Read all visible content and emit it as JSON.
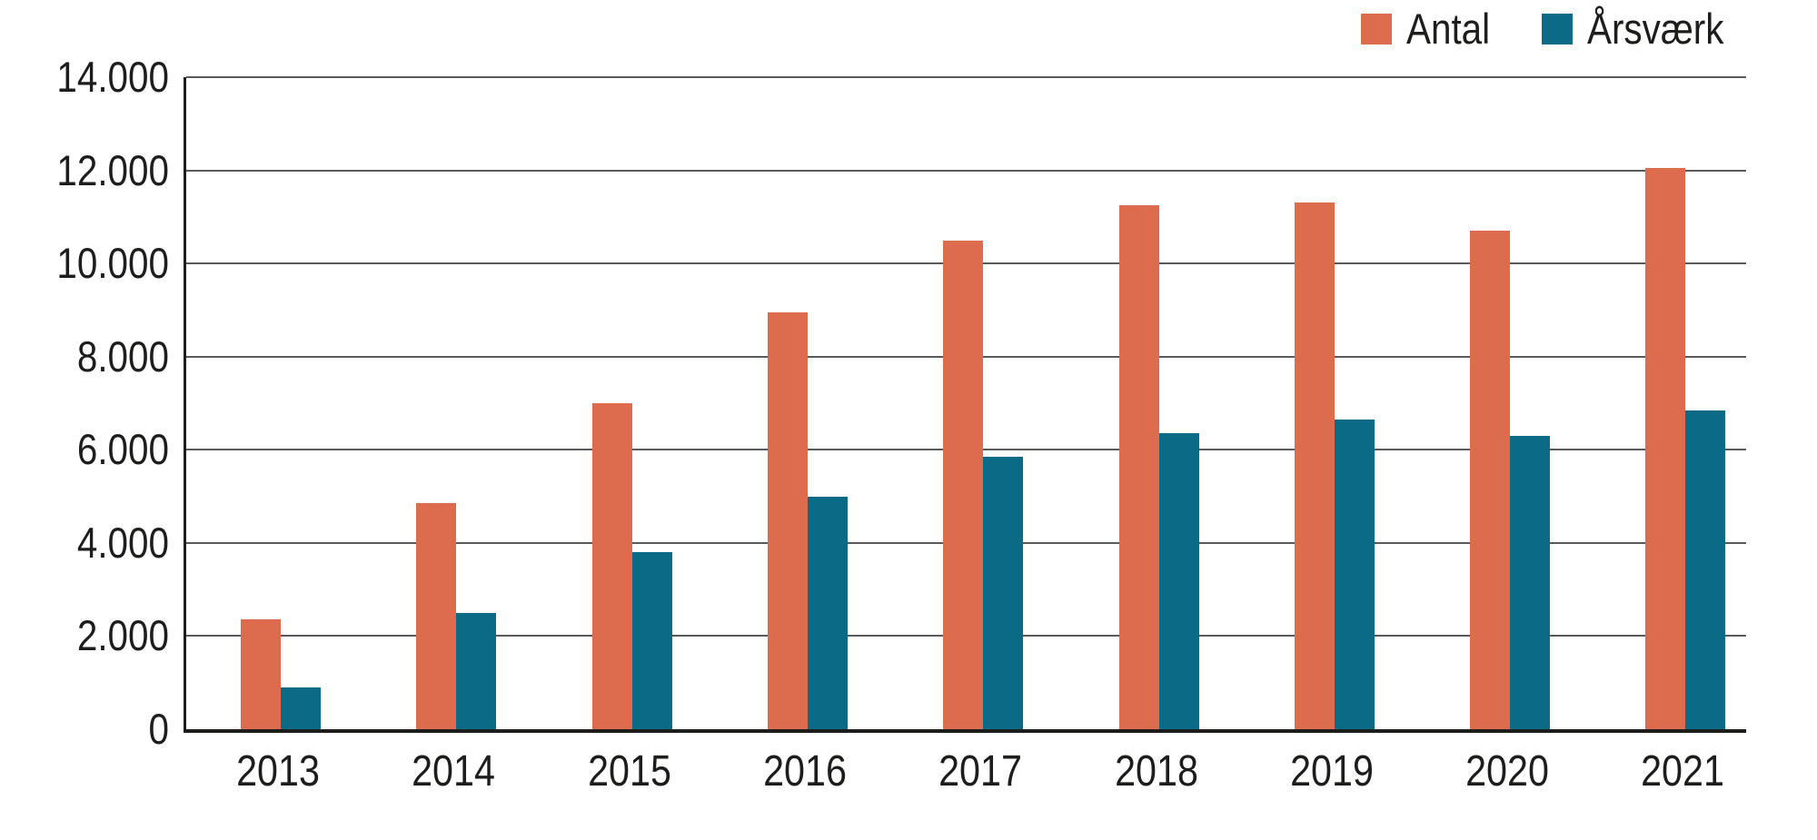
{
  "legend": {
    "items": [
      {
        "label": "Antal",
        "color": "#dd6b4d"
      },
      {
        "label": "Årsværk",
        "color": "#0b6a85"
      }
    ]
  },
  "chart_data": {
    "type": "bar",
    "title": "",
    "categories": [
      "2013",
      "2014",
      "2015",
      "2016",
      "2017",
      "2018",
      "2019",
      "2020",
      "2021"
    ],
    "series": [
      {
        "name": "Antal",
        "color": "#dd6b4d",
        "values": [
          2350,
          4850,
          7000,
          8950,
          10500,
          11250,
          11300,
          10700,
          12050
        ]
      },
      {
        "name": "Årsværk",
        "color": "#0b6a85",
        "values": [
          900,
          2500,
          3800,
          5000,
          5850,
          6350,
          6650,
          6300,
          6850
        ]
      }
    ],
    "ylim": [
      0,
      14000
    ],
    "y_tick_step": 2000,
    "y_ticks": [
      "0",
      "2.000",
      "4.000",
      "6.000",
      "8.000",
      "10.000",
      "12.000",
      "14.000"
    ],
    "grid": "horizontal",
    "legend_position": "top-right",
    "colors": {
      "grid": "#58595b",
      "axis": "#1d1d1b",
      "text": "#1d1d1b",
      "background": "#ffffff"
    }
  }
}
